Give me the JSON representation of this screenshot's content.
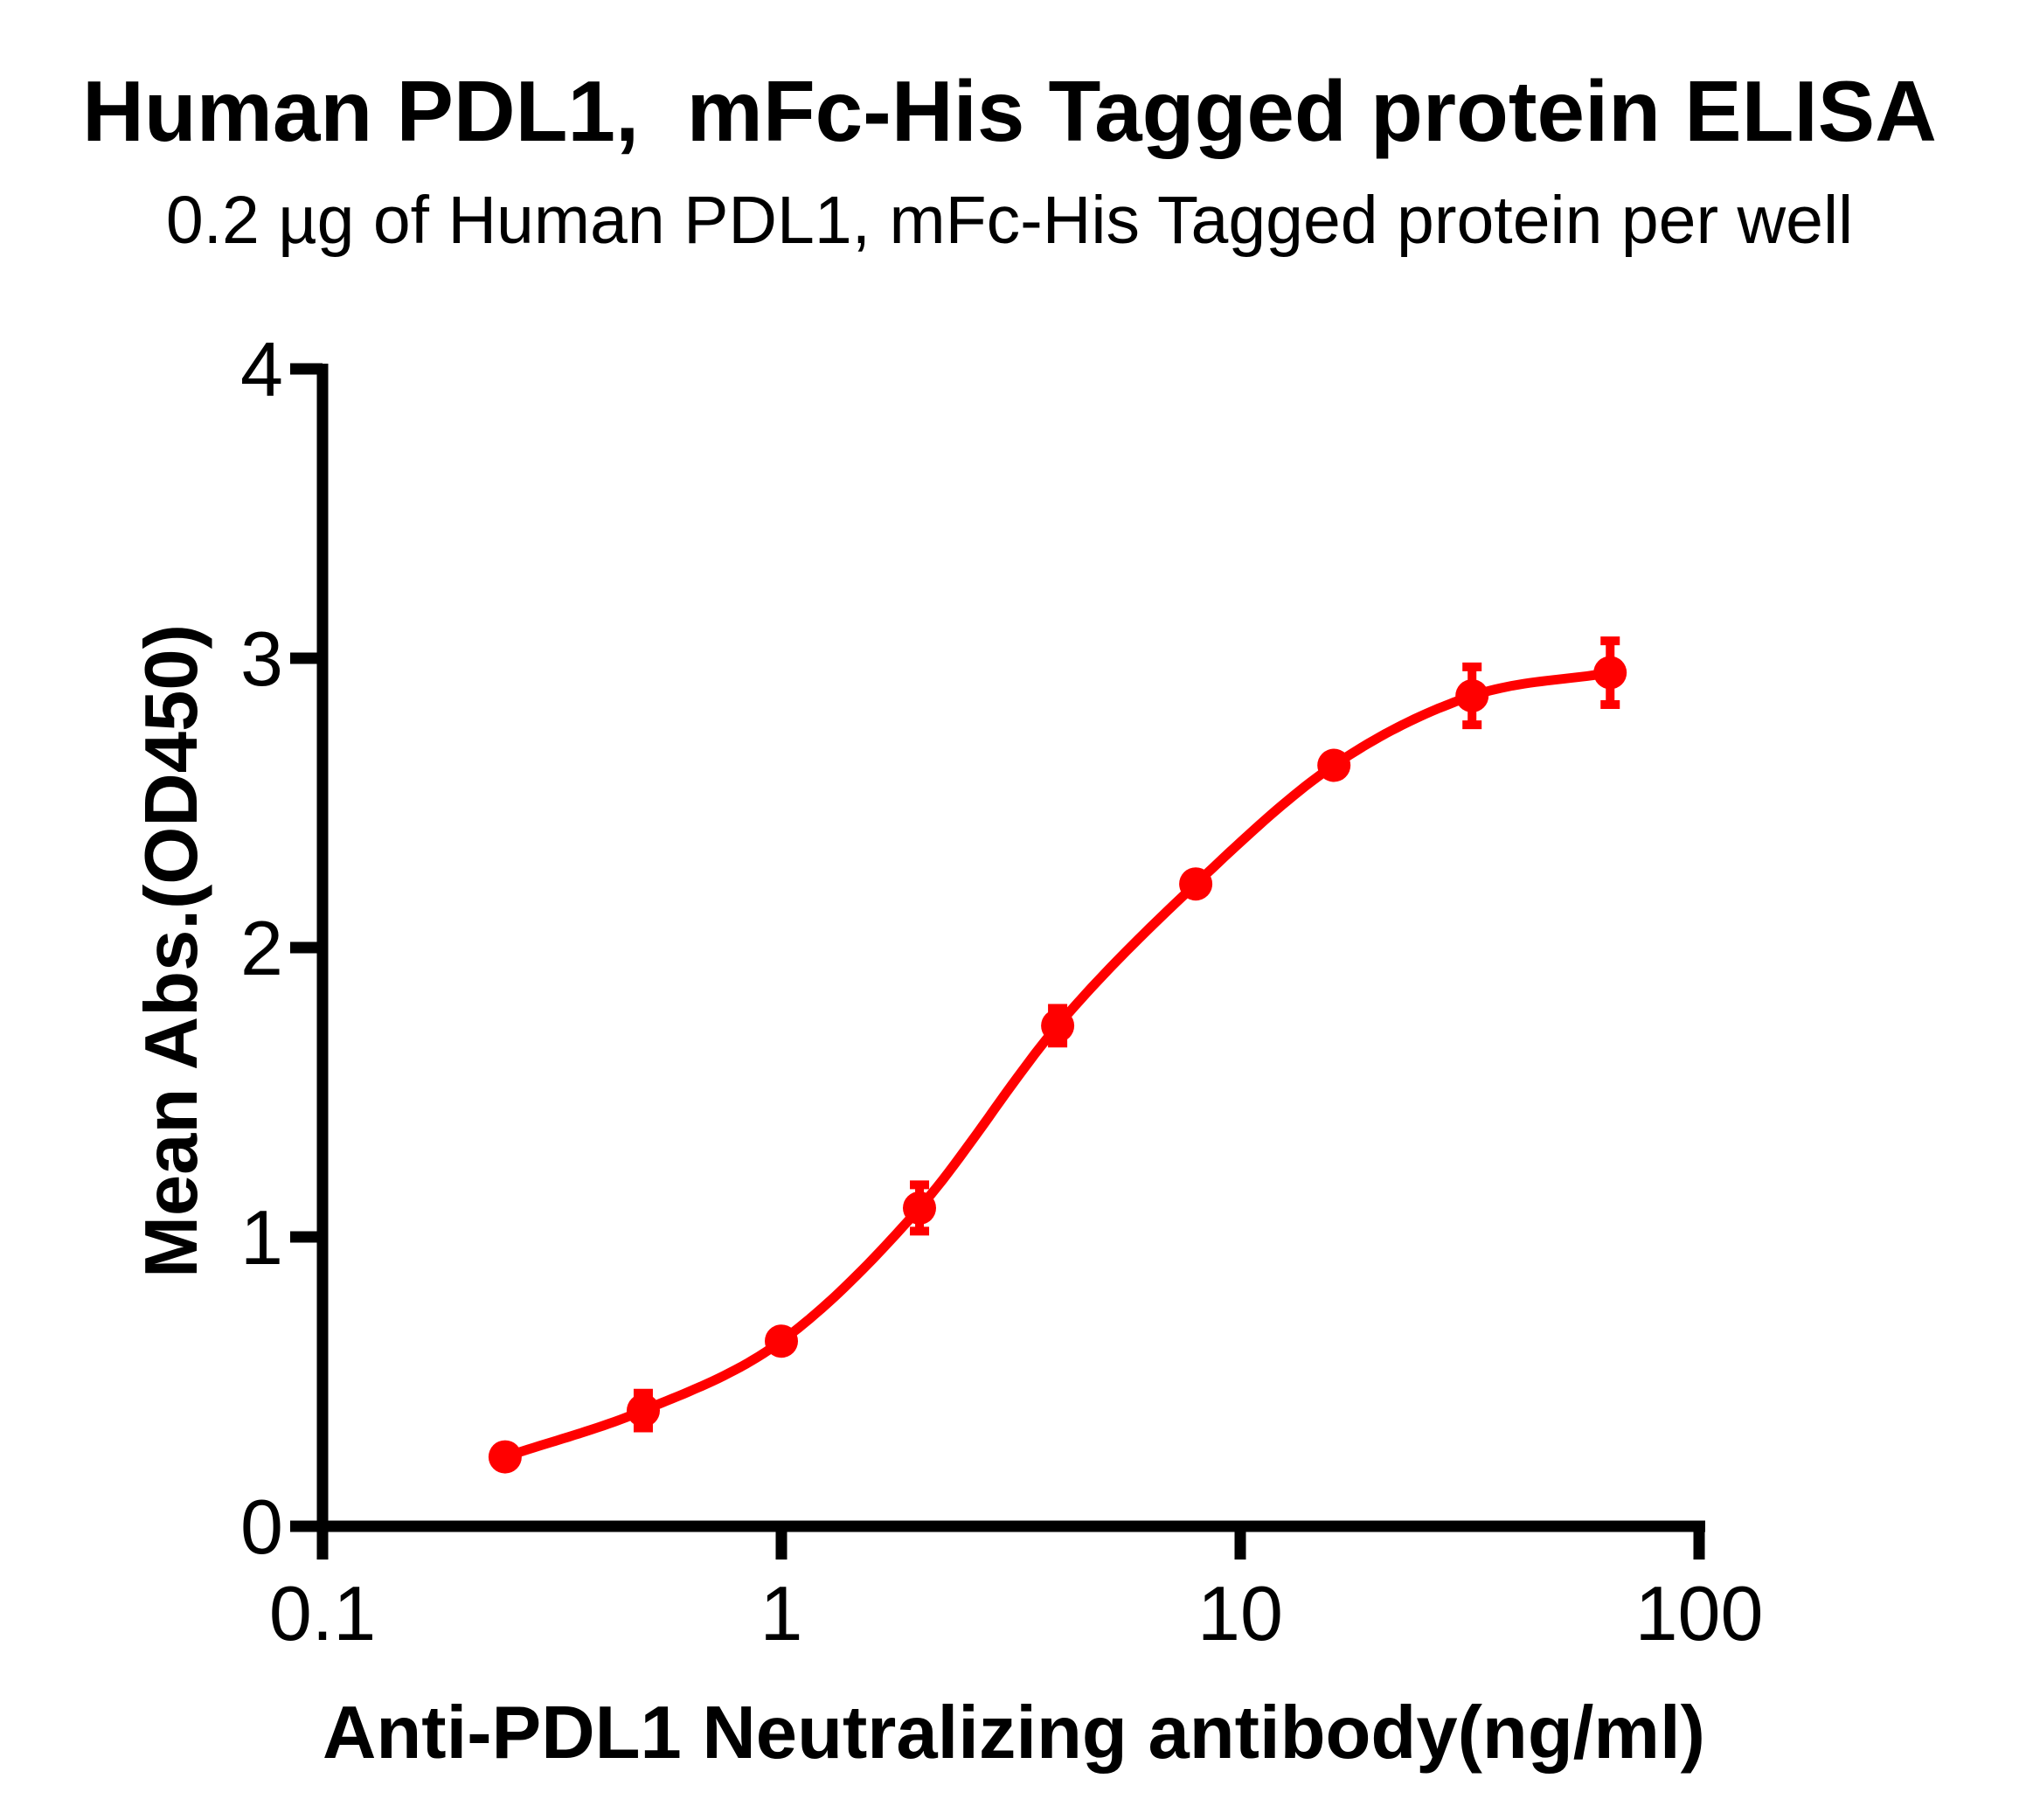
{
  "title": "Human PDL1,  mFc-His Tagged protein ELISA",
  "subtitle": "0.2 µg of Human PDL1, mFc-His Tagged protein per well",
  "chart_data": {
    "type": "scatter",
    "curve_fit": "sigmoidal 4PL dose-response curve through points",
    "x": [
      0.25,
      0.5,
      1,
      2,
      4,
      8,
      16,
      32,
      64
    ],
    "y": [
      0.24,
      0.4,
      0.64,
      1.1,
      1.73,
      2.22,
      2.63,
      2.87,
      2.95
    ],
    "y_err": [
      0.02,
      0.06,
      0.03,
      0.08,
      0.06,
      0.02,
      0.02,
      0.1,
      0.11
    ],
    "xlabel": "Anti-PDL1 Neutralizing antibody(ng/ml)",
    "ylabel": "Mean Abs.(OD450)",
    "xscale": "log10",
    "xlim": [
      0.1,
      130
    ],
    "ylim": [
      0,
      4
    ],
    "x_ticks": [
      0.1,
      1,
      10,
      100
    ],
    "x_tick_labels": [
      "0.1",
      "1",
      "10",
      "100"
    ],
    "y_ticks": [
      0,
      1,
      2,
      3,
      4
    ],
    "y_tick_labels": [
      "0",
      "1",
      "2",
      "3",
      "4"
    ],
    "grid": false,
    "legend": "none",
    "marker": "circle",
    "line_color": "#FF0000",
    "marker_color": "#FF0000",
    "error_bar_color": "#FF0000",
    "axis_color": "#000000",
    "background_color": "#FFFFFF"
  }
}
